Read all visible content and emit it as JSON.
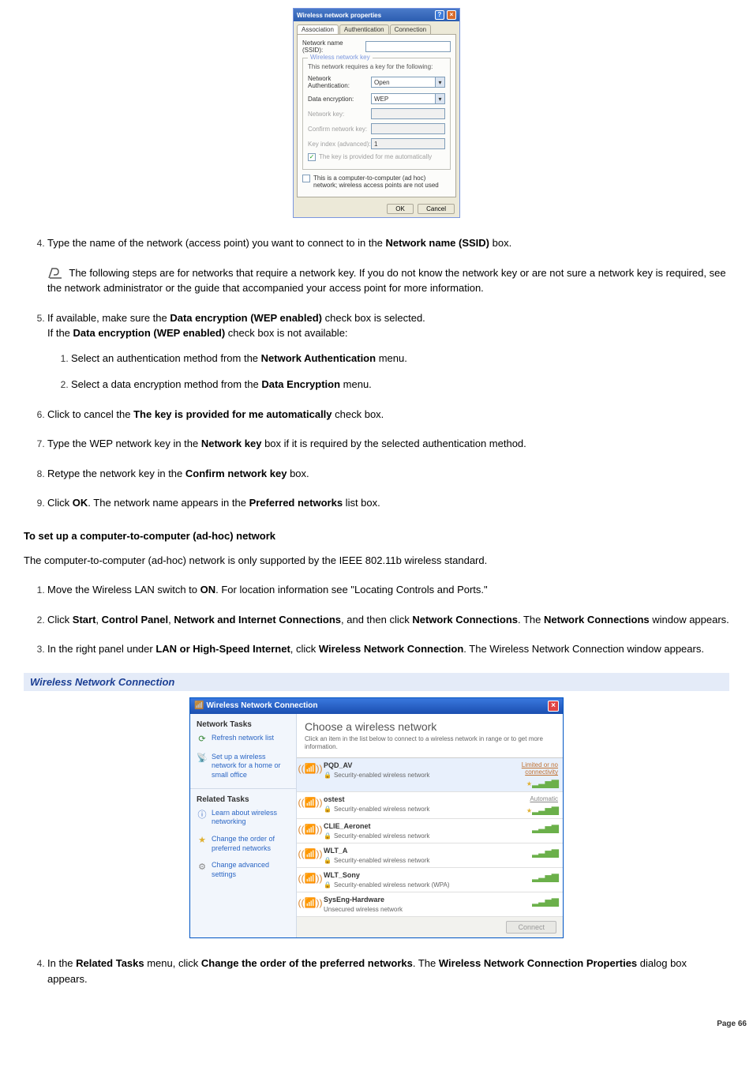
{
  "dialog1": {
    "title": "Wireless network properties",
    "tabs": [
      "Association",
      "Authentication",
      "Connection"
    ],
    "ssid_label": "Network name (SSID):",
    "group_title": "Wireless network key",
    "group_text": "This network requires a key for the following:",
    "auth_label": "Network Authentication:",
    "auth_value": "Open",
    "enc_label": "Data encryption:",
    "enc_value": "WEP",
    "key_label": "Network key:",
    "confirm_label": "Confirm network key:",
    "index_label": "Key index (advanced):",
    "index_value": "1",
    "auto_chk": "The key is provided for me automatically",
    "adhoc_chk": "This is a computer-to-computer (ad hoc) network; wireless access points are not used",
    "ok": "OK",
    "cancel": "Cancel"
  },
  "steps_a": {
    "s4": {
      "pre": "Type the name of the network (access point) you want to connect to in the ",
      "b1": "Network name (SSID)",
      "post": " box."
    },
    "note": " The following steps are for networks that require a network key. If you do not know the network key or are not sure a network key is required, see the network administrator or the guide that accompanied your access point for more information.",
    "s5a": "If available, make sure the ",
    "s5b": "Data encryption (WEP enabled)",
    "s5c": " check box is selected.",
    "s5d": "If the ",
    "s5e": "Data encryption (WEP enabled)",
    "s5f": " check box is not available:",
    "s5_1a": "Select an authentication method from the ",
    "s5_1b": "Network Authentication",
    "s5_1c": " menu.",
    "s5_2a": "Select a data encryption method from the ",
    "s5_2b": "Data Encryption",
    "s5_2c": " menu.",
    "s6a": "Click to cancel the ",
    "s6b": "The key is provided for me automatically",
    "s6c": " check box.",
    "s7a": "Type the WEP network key in the ",
    "s7b": "Network key",
    "s7c": " box if it is required by the selected authentication method.",
    "s8a": "Retype the network key in the ",
    "s8b": "Confirm network key",
    "s8c": " box.",
    "s9a": "Click ",
    "s9b": "OK",
    "s9c": ". The network name appears in the ",
    "s9d": "Preferred networks",
    "s9e": " list box."
  },
  "section2_h": "To set up a computer-to-computer (ad-hoc) network",
  "section2_intro": "The computer-to-computer (ad-hoc) network is only supported by the IEEE 802.11b wireless standard.",
  "steps_b": {
    "s1a": "Move the Wireless LAN switch to ",
    "s1b": "ON",
    "s1c": ". For location information see \"Locating Controls and Ports.\"",
    "s2a": "Click ",
    "s2b": "Start",
    "s2c": ", ",
    "s2d": "Control Panel",
    "s2e": ", ",
    "s2f": "Network and Internet Connections",
    "s2g": ", and then click ",
    "s2h": "Network Connections",
    "s2i": ". The ",
    "s2j": "Network Connections",
    "s2k": " window appears.",
    "s3a": "In the right panel under ",
    "s3b": "LAN or High-Speed Internet",
    "s3c": ", click ",
    "s3d": "Wireless Network Connection",
    "s3e": ". The Wireless Network Connection window appears."
  },
  "caption2": "Wireless Network Connection",
  "dialog2": {
    "title": "Wireless Network Connection",
    "side_h1": "Network Tasks",
    "side_i1": "Refresh network list",
    "side_i2": "Set up a wireless network for a home or small office",
    "side_h2": "Related Tasks",
    "side_i3": "Learn about wireless networking",
    "side_i4": "Change the order of preferred networks",
    "side_i5": "Change advanced settings",
    "main_h": "Choose a wireless network",
    "main_sub": "Click an item in the list below to connect to a wireless network in range or to get more information.",
    "networks": [
      {
        "name": "PQD_AV",
        "sec": "Security-enabled wireless network",
        "status": "Limited or no connectivity",
        "sel": true,
        "star": true
      },
      {
        "name": "ostest",
        "sec": "Security-enabled wireless network",
        "status": "Automatic",
        "star": true
      },
      {
        "name": "CLIE_Aeronet",
        "sec": "Security-enabled wireless network"
      },
      {
        "name": "WLT_A",
        "sec": "Security-enabled wireless network"
      },
      {
        "name": "WLT_Sony",
        "sec": "Security-enabled wireless network (WPA)"
      },
      {
        "name": "SysEng-Hardware",
        "sec": "Unsecured wireless network",
        "unsec": true
      }
    ],
    "connect": "Connect"
  },
  "steps_c": {
    "s4a": "In the ",
    "s4b": "Related Tasks",
    "s4c": " menu, click ",
    "s4d": "Change the order of the preferred networks",
    "s4e": ". The ",
    "s4f": "Wireless Network Connection Properties",
    "s4g": " dialog box appears."
  },
  "page_num": "Page 66"
}
